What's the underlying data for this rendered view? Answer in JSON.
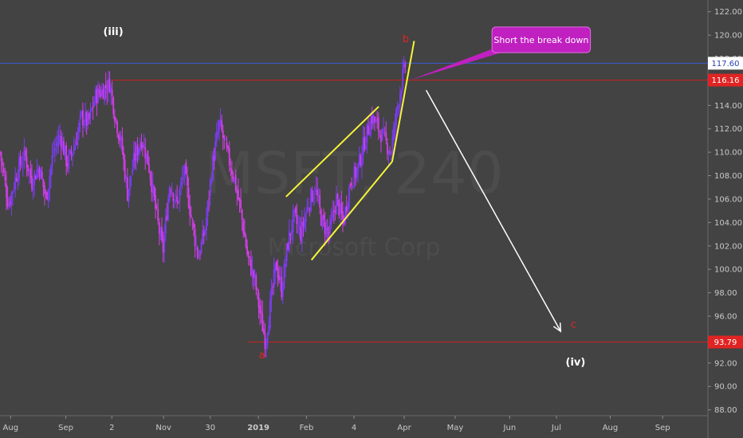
{
  "chart_data": {
    "type": "candlestick",
    "symbol_watermark": "MSFT, 240",
    "name_watermark": "Microsoft Corp",
    "y_ticks": [
      88,
      90,
      92,
      94,
      96,
      98,
      100,
      102,
      104,
      106,
      108,
      110,
      112,
      114,
      116,
      118,
      120,
      122
    ],
    "y_tick_labels": [
      "88.00",
      "90.00",
      "92.00",
      "94.00",
      "96.00",
      "98.00",
      "100.00",
      "102.00",
      "104.00",
      "106.00",
      "108.00",
      "110.00",
      "112.00",
      "114.00",
      "116.00",
      "118.00",
      "120.00",
      "122.00"
    ],
    "ylim": [
      87.5,
      123
    ],
    "x_ticks": [
      {
        "label": "Aug",
        "x": 0.015,
        "bold": false
      },
      {
        "label": "Sep",
        "x": 0.093,
        "bold": false
      },
      {
        "label": "2",
        "x": 0.158,
        "bold": false
      },
      {
        "label": "Nov",
        "x": 0.231,
        "bold": false
      },
      {
        "label": "30",
        "x": 0.297,
        "bold": false
      },
      {
        "label": "2019",
        "x": 0.365,
        "bold": true
      },
      {
        "label": "Feb",
        "x": 0.433,
        "bold": false
      },
      {
        "label": "4",
        "x": 0.5,
        "bold": false
      },
      {
        "label": "Apr",
        "x": 0.571,
        "bold": false
      },
      {
        "label": "May",
        "x": 0.643,
        "bold": false
      },
      {
        "label": "Jun",
        "x": 0.72,
        "bold": false
      },
      {
        "label": "Jul",
        "x": 0.786,
        "bold": false
      },
      {
        "label": "Aug",
        "x": 0.862,
        "bold": false
      },
      {
        "label": "Sep",
        "x": 0.936,
        "bold": false
      }
    ],
    "price_path": [
      [
        0.0,
        110.0
      ],
      [
        0.012,
        105.5
      ],
      [
        0.025,
        108.5
      ],
      [
        0.035,
        109.8
      ],
      [
        0.045,
        107.5
      ],
      [
        0.055,
        108.8
      ],
      [
        0.065,
        106.0
      ],
      [
        0.075,
        110.0
      ],
      [
        0.085,
        111.5
      ],
      [
        0.095,
        109.0
      ],
      [
        0.105,
        110.5
      ],
      [
        0.115,
        113.0
      ],
      [
        0.125,
        112.5
      ],
      [
        0.135,
        114.8
      ],
      [
        0.145,
        115.3
      ],
      [
        0.155,
        115.9
      ],
      [
        0.163,
        113.0
      ],
      [
        0.172,
        110.5
      ],
      [
        0.18,
        106.5
      ],
      [
        0.19,
        109.5
      ],
      [
        0.2,
        111.2
      ],
      [
        0.21,
        109.0
      ],
      [
        0.22,
        105.0
      ],
      [
        0.23,
        101.5
      ],
      [
        0.24,
        107.5
      ],
      [
        0.25,
        105.5
      ],
      [
        0.26,
        108.5
      ],
      [
        0.27,
        104.5
      ],
      [
        0.28,
        101.0
      ],
      [
        0.29,
        103.5
      ],
      [
        0.3,
        109.0
      ],
      [
        0.31,
        112.5
      ],
      [
        0.32,
        110.0
      ],
      [
        0.33,
        108.0
      ],
      [
        0.34,
        105.0
      ],
      [
        0.35,
        101.0
      ],
      [
        0.36,
        99.0
      ],
      [
        0.368,
        96.0
      ],
      [
        0.375,
        93.8
      ],
      [
        0.382,
        97.0
      ],
      [
        0.39,
        100.5
      ],
      [
        0.398,
        98.2
      ],
      [
        0.406,
        102.0
      ],
      [
        0.415,
        104.5
      ],
      [
        0.425,
        103.0
      ],
      [
        0.435,
        105.5
      ],
      [
        0.445,
        107.0
      ],
      [
        0.455,
        104.0
      ],
      [
        0.465,
        103.0
      ],
      [
        0.475,
        106.0
      ],
      [
        0.485,
        104.0
      ],
      [
        0.495,
        107.5
      ],
      [
        0.505,
        108.5
      ],
      [
        0.515,
        111.0
      ],
      [
        0.525,
        113.0
      ],
      [
        0.535,
        112.0
      ],
      [
        0.545,
        110.8
      ],
      [
        0.552,
        110.0
      ],
      [
        0.558,
        112.5
      ],
      [
        0.563,
        114.5
      ],
      [
        0.568,
        116.2
      ],
      [
        0.573,
        117.6
      ]
    ],
    "horizontal_levels": [
      {
        "value": 117.6,
        "label": "117.60",
        "color": "#3a5bd9",
        "tag_bg": "#ffffff",
        "tag_fg": "#2a3fb0",
        "x_start": 0.0
      },
      {
        "value": 116.16,
        "label": "116.16",
        "color": "#d02020",
        "tag_bg": "#e02424",
        "tag_fg": "#ffffff",
        "x_start": 0.158
      },
      {
        "value": 93.79,
        "label": "93.79",
        "color": "#d02020",
        "tag_bg": "#e02424",
        "tag_fg": "#ffffff",
        "x_start": 0.35
      }
    ],
    "channel_lines": [
      {
        "x1": 0.404,
        "y1": 106.2,
        "x2": 0.535,
        "y2": 113.9
      },
      {
        "x1": 0.44,
        "y1": 100.8,
        "x2": 0.554,
        "y2": 109.2
      },
      {
        "x1": 0.554,
        "y1": 109.2,
        "x2": 0.585,
        "y2": 119.5
      }
    ],
    "arrow": {
      "x1": 0.602,
      "y1": 115.3,
      "x2": 0.792,
      "y2": 94.7
    },
    "wave_labels": [
      {
        "text": "(iii)",
        "x": 0.16,
        "y": 120.0,
        "class": "wave-label"
      },
      {
        "text": "b",
        "x": 0.573,
        "y": 119.4,
        "class": "wave-letter"
      },
      {
        "text": "a",
        "x": 0.37,
        "y": 92.4,
        "class": "wave-letter"
      },
      {
        "text": "c",
        "x": 0.81,
        "y": 95.0,
        "class": "wave-letter"
      },
      {
        "text": "(iv)",
        "x": 0.813,
        "y": 91.8,
        "class": "wave-label"
      }
    ],
    "callout": {
      "text": "Short the break down",
      "box_x": 0.695,
      "box_y": 120.7,
      "box_x2": 0.834,
      "box_y2": 118.5,
      "pointer_x": 0.579,
      "pointer_y": 116.16,
      "color": "#c020c0"
    },
    "colors": {
      "background": "#434343",
      "up": "#7b3cf0",
      "down": "#d13ee6",
      "channel": "#f5f53a",
      "arrow": "#ffffff"
    }
  }
}
